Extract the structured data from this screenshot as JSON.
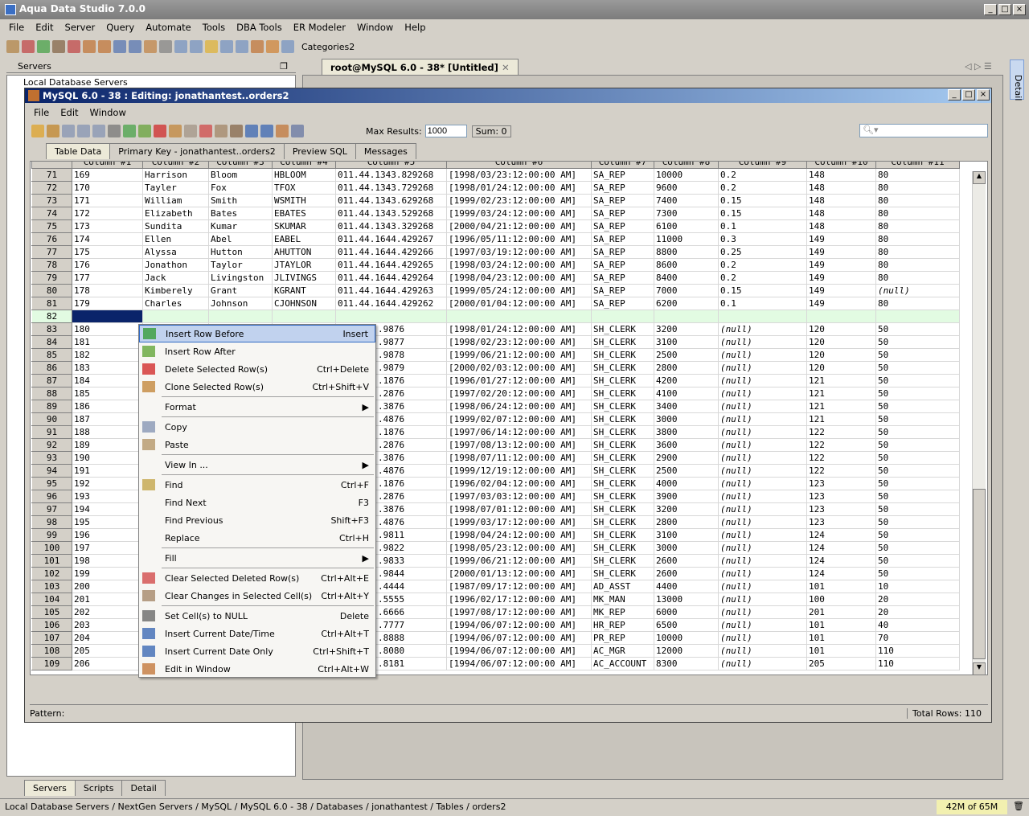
{
  "app": {
    "title": "Aqua Data Studio 7.0.0",
    "menu": [
      "File",
      "Edit",
      "Server",
      "Query",
      "Automate",
      "Tools",
      "DBA Tools",
      "ER Modeler",
      "Window",
      "Help"
    ],
    "categories_label": "Categories2"
  },
  "servers_panel": {
    "title": "Servers",
    "tree_root": "Local Database Servers",
    "bottom_tabs": [
      "Servers",
      "Scripts",
      "Detail"
    ]
  },
  "doc_tab": {
    "label": "root@MySQL 6.0 - 38* [Untitled]"
  },
  "right_strip": {
    "label": "Detail"
  },
  "editor": {
    "title": "MySQL 6.0 - 38 : Editing: jonathantest..orders2",
    "menu": [
      "File",
      "Edit",
      "Window"
    ],
    "max_results_label": "Max Results:",
    "max_results_value": "1000",
    "sum_label": "Sum: 0",
    "search_placeholder": "",
    "tabs": [
      "Table Data",
      "Primary Key - jonathantest..orders2",
      "Preview SQL",
      "Messages"
    ],
    "columns": [
      "Column #1",
      "Column #2",
      "Column #3",
      "Column #4",
      "Column #5",
      "Column #6",
      "Column #7",
      "Column #8",
      "Column #9",
      "Column #10",
      "Column #11"
    ],
    "rows": [
      [
        "71",
        "169",
        "Harrison",
        "Bloom",
        "HBLOOM",
        "011.44.1343.829268",
        "[1998/03/23:12:00:00 AM]",
        "SA_REP",
        "10000",
        "0.2",
        "148",
        "80"
      ],
      [
        "72",
        "170",
        "Tayler",
        "Fox",
        "TFOX",
        "011.44.1343.729268",
        "[1998/01/24:12:00:00 AM]",
        "SA_REP",
        "9600",
        "0.2",
        "148",
        "80"
      ],
      [
        "73",
        "171",
        "William",
        "Smith",
        "WSMITH",
        "011.44.1343.629268",
        "[1999/02/23:12:00:00 AM]",
        "SA_REP",
        "7400",
        "0.15",
        "148",
        "80"
      ],
      [
        "74",
        "172",
        "Elizabeth",
        "Bates",
        "EBATES",
        "011.44.1343.529268",
        "[1999/03/24:12:00:00 AM]",
        "SA_REP",
        "7300",
        "0.15",
        "148",
        "80"
      ],
      [
        "75",
        "173",
        "Sundita",
        "Kumar",
        "SKUMAR",
        "011.44.1343.329268",
        "[2000/04/21:12:00:00 AM]",
        "SA_REP",
        "6100",
        "0.1",
        "148",
        "80"
      ],
      [
        "76",
        "174",
        "Ellen",
        "Abel",
        "EABEL",
        "011.44.1644.429267",
        "[1996/05/11:12:00:00 AM]",
        "SA_REP",
        "11000",
        "0.3",
        "149",
        "80"
      ],
      [
        "77",
        "175",
        "Alyssa",
        "Hutton",
        "AHUTTON",
        "011.44.1644.429266",
        "[1997/03/19:12:00:00 AM]",
        "SA_REP",
        "8800",
        "0.25",
        "149",
        "80"
      ],
      [
        "78",
        "176",
        "Jonathon",
        "Taylor",
        "JTAYLOR",
        "011.44.1644.429265",
        "[1998/03/24:12:00:00 AM]",
        "SA_REP",
        "8600",
        "0.2",
        "149",
        "80"
      ],
      [
        "79",
        "177",
        "Jack",
        "Livingston",
        "JLIVINGS",
        "011.44.1644.429264",
        "[1998/04/23:12:00:00 AM]",
        "SA_REP",
        "8400",
        "0.2",
        "149",
        "80"
      ],
      [
        "80",
        "178",
        "Kimberely",
        "Grant",
        "KGRANT",
        "011.44.1644.429263",
        "[1999/05/24:12:00:00 AM]",
        "SA_REP",
        "7000",
        "0.15",
        "149",
        "(null)"
      ],
      [
        "81",
        "179",
        "Charles",
        "Johnson",
        "CJOHNSON",
        "011.44.1644.429262",
        "[2000/01/04:12:00:00 AM]",
        "SA_REP",
        "6200",
        "0.1",
        "149",
        "80"
      ],
      [
        "82",
        "",
        "",
        "",
        "",
        "",
        "",
        "",
        "",
        "",
        "",
        ""
      ],
      [
        "83",
        "180",
        "",
        "",
        "",
        ".9876",
        "[1998/01/24:12:00:00 AM]",
        "SH_CLERK",
        "3200",
        "(null)",
        "120",
        "50"
      ],
      [
        "84",
        "181",
        "",
        "",
        "",
        ".9877",
        "[1998/02/23:12:00:00 AM]",
        "SH_CLERK",
        "3100",
        "(null)",
        "120",
        "50"
      ],
      [
        "85",
        "182",
        "",
        "",
        "",
        ".9878",
        "[1999/06/21:12:00:00 AM]",
        "SH_CLERK",
        "2500",
        "(null)",
        "120",
        "50"
      ],
      [
        "86",
        "183",
        "",
        "",
        "",
        ".9879",
        "[2000/02/03:12:00:00 AM]",
        "SH_CLERK",
        "2800",
        "(null)",
        "120",
        "50"
      ],
      [
        "87",
        "184",
        "",
        "",
        "",
        ".1876",
        "[1996/01/27:12:00:00 AM]",
        "SH_CLERK",
        "4200",
        "(null)",
        "121",
        "50"
      ],
      [
        "88",
        "185",
        "",
        "",
        "",
        ".2876",
        "[1997/02/20:12:00:00 AM]",
        "SH_CLERK",
        "4100",
        "(null)",
        "121",
        "50"
      ],
      [
        "89",
        "186",
        "",
        "",
        "",
        ".3876",
        "[1998/06/24:12:00:00 AM]",
        "SH_CLERK",
        "3400",
        "(null)",
        "121",
        "50"
      ],
      [
        "90",
        "187",
        "",
        "",
        "",
        ".4876",
        "[1999/02/07:12:00:00 AM]",
        "SH_CLERK",
        "3000",
        "(null)",
        "121",
        "50"
      ],
      [
        "91",
        "188",
        "",
        "",
        "",
        ".1876",
        "[1997/06/14:12:00:00 AM]",
        "SH_CLERK",
        "3800",
        "(null)",
        "122",
        "50"
      ],
      [
        "92",
        "189",
        "",
        "",
        "",
        ".2876",
        "[1997/08/13:12:00:00 AM]",
        "SH_CLERK",
        "3600",
        "(null)",
        "122",
        "50"
      ],
      [
        "93",
        "190",
        "",
        "",
        "",
        ".3876",
        "[1998/07/11:12:00:00 AM]",
        "SH_CLERK",
        "2900",
        "(null)",
        "122",
        "50"
      ],
      [
        "94",
        "191",
        "",
        "",
        "",
        ".4876",
        "[1999/12/19:12:00:00 AM]",
        "SH_CLERK",
        "2500",
        "(null)",
        "122",
        "50"
      ],
      [
        "95",
        "192",
        "",
        "",
        "",
        ".1876",
        "[1996/02/04:12:00:00 AM]",
        "SH_CLERK",
        "4000",
        "(null)",
        "123",
        "50"
      ],
      [
        "96",
        "193",
        "",
        "",
        "",
        ".2876",
        "[1997/03/03:12:00:00 AM]",
        "SH_CLERK",
        "3900",
        "(null)",
        "123",
        "50"
      ],
      [
        "97",
        "194",
        "",
        "",
        "",
        ".3876",
        "[1998/07/01:12:00:00 AM]",
        "SH_CLERK",
        "3200",
        "(null)",
        "123",
        "50"
      ],
      [
        "98",
        "195",
        "",
        "",
        "",
        ".4876",
        "[1999/03/17:12:00:00 AM]",
        "SH_CLERK",
        "2800",
        "(null)",
        "123",
        "50"
      ],
      [
        "99",
        "196",
        "",
        "",
        "",
        ".9811",
        "[1998/04/24:12:00:00 AM]",
        "SH_CLERK",
        "3100",
        "(null)",
        "124",
        "50"
      ],
      [
        "100",
        "197",
        "",
        "",
        "",
        ".9822",
        "[1998/05/23:12:00:00 AM]",
        "SH_CLERK",
        "3000",
        "(null)",
        "124",
        "50"
      ],
      [
        "101",
        "198",
        "",
        "",
        "",
        ".9833",
        "[1999/06/21:12:00:00 AM]",
        "SH_CLERK",
        "2600",
        "(null)",
        "124",
        "50"
      ],
      [
        "102",
        "199",
        "",
        "",
        "",
        ".9844",
        "[2000/01/13:12:00:00 AM]",
        "SH_CLERK",
        "2600",
        "(null)",
        "124",
        "50"
      ],
      [
        "103",
        "200",
        "",
        "",
        "",
        ".4444",
        "[1987/09/17:12:00:00 AM]",
        "AD_ASST",
        "4400",
        "(null)",
        "101",
        "10"
      ],
      [
        "104",
        "201",
        "",
        "",
        "",
        ".5555",
        "[1996/02/17:12:00:00 AM]",
        "MK_MAN",
        "13000",
        "(null)",
        "100",
        "20"
      ],
      [
        "105",
        "202",
        "",
        "",
        "",
        ".6666",
        "[1997/08/17:12:00:00 AM]",
        "MK_REP",
        "6000",
        "(null)",
        "201",
        "20"
      ],
      [
        "106",
        "203",
        "",
        "",
        "",
        ".7777",
        "[1994/06/07:12:00:00 AM]",
        "HR_REP",
        "6500",
        "(null)",
        "101",
        "40"
      ],
      [
        "107",
        "204",
        "",
        "",
        "",
        ".8888",
        "[1994/06/07:12:00:00 AM]",
        "PR_REP",
        "10000",
        "(null)",
        "101",
        "70"
      ],
      [
        "108",
        "205",
        "",
        "",
        "",
        ".8080",
        "[1994/06/07:12:00:00 AM]",
        "AC_MGR",
        "12000",
        "(null)",
        "101",
        "110"
      ],
      [
        "109",
        "206",
        "",
        "",
        "",
        ".8181",
        "[1994/06/07:12:00:00 AM]",
        "AC_ACCOUNT",
        "8300",
        "(null)",
        "205",
        "110"
      ]
    ],
    "pattern_label": "Pattern:",
    "total_rows": "Total Rows: 110"
  },
  "context_menu": [
    {
      "label": "Insert Row Before",
      "shortcut": "Insert",
      "icon": "insert-row-before-icon",
      "color": "#2e9a2e",
      "highlighted": true
    },
    {
      "label": "Insert Row After",
      "shortcut": "",
      "icon": "insert-row-after-icon",
      "color": "#5aa02e"
    },
    {
      "label": "Delete Selected Row(s)",
      "shortcut": "Ctrl+Delete",
      "icon": "delete-row-icon",
      "color": "#d02020"
    },
    {
      "label": "Clone Selected Row(s)",
      "shortcut": "Ctrl+Shift+V",
      "icon": "clone-row-icon",
      "color": "#c08030"
    },
    {
      "sep": true
    },
    {
      "label": "Format",
      "submenu": true
    },
    {
      "sep": true
    },
    {
      "label": "Copy",
      "shortcut": "",
      "icon": "copy-icon",
      "color": "#8090b0"
    },
    {
      "label": "Paste",
      "shortcut": "",
      "icon": "paste-icon",
      "color": "#b09060"
    },
    {
      "sep": true
    },
    {
      "label": "View In ...",
      "submenu": true
    },
    {
      "sep": true
    },
    {
      "label": "Find",
      "shortcut": "Ctrl+F",
      "icon": "find-icon",
      "color": "#c0a040"
    },
    {
      "label": "Find Next",
      "shortcut": "F3"
    },
    {
      "label": "Find Previous",
      "shortcut": "Shift+F3"
    },
    {
      "label": "Replace",
      "shortcut": "Ctrl+H"
    },
    {
      "sep": true
    },
    {
      "label": "Fill",
      "submenu": true
    },
    {
      "sep": true
    },
    {
      "label": "Clear Selected Deleted Row(s)",
      "shortcut": "Ctrl+Alt+E",
      "icon": "clear-deleted-icon",
      "color": "#d04040"
    },
    {
      "label": "Clear Changes in Selected Cell(s)",
      "shortcut": "Ctrl+Alt+Y",
      "icon": "clear-changes-icon",
      "color": "#a08060"
    },
    {
      "sep": true
    },
    {
      "label": "Set Cell(s) to NULL",
      "shortcut": "Delete",
      "icon": "set-null-icon",
      "color": "#606060"
    },
    {
      "label": "Insert Current Date/Time",
      "shortcut": "Ctrl+Alt+T",
      "icon": "date-time-icon",
      "color": "#3060b0"
    },
    {
      "label": "Insert Current Date Only",
      "shortcut": "Ctrl+Shift+T",
      "icon": "date-icon",
      "color": "#3060b0"
    },
    {
      "label": "Edit in Window",
      "shortcut": "Ctrl+Alt+W",
      "icon": "edit-window-icon",
      "color": "#c07030"
    }
  ],
  "statusbar": {
    "path": "Local Database Servers / NextGen Servers / MySQL / MySQL 6.0 - 38 / Databases / jonathantest / Tables / orders2",
    "memory": "42M of 65M"
  }
}
